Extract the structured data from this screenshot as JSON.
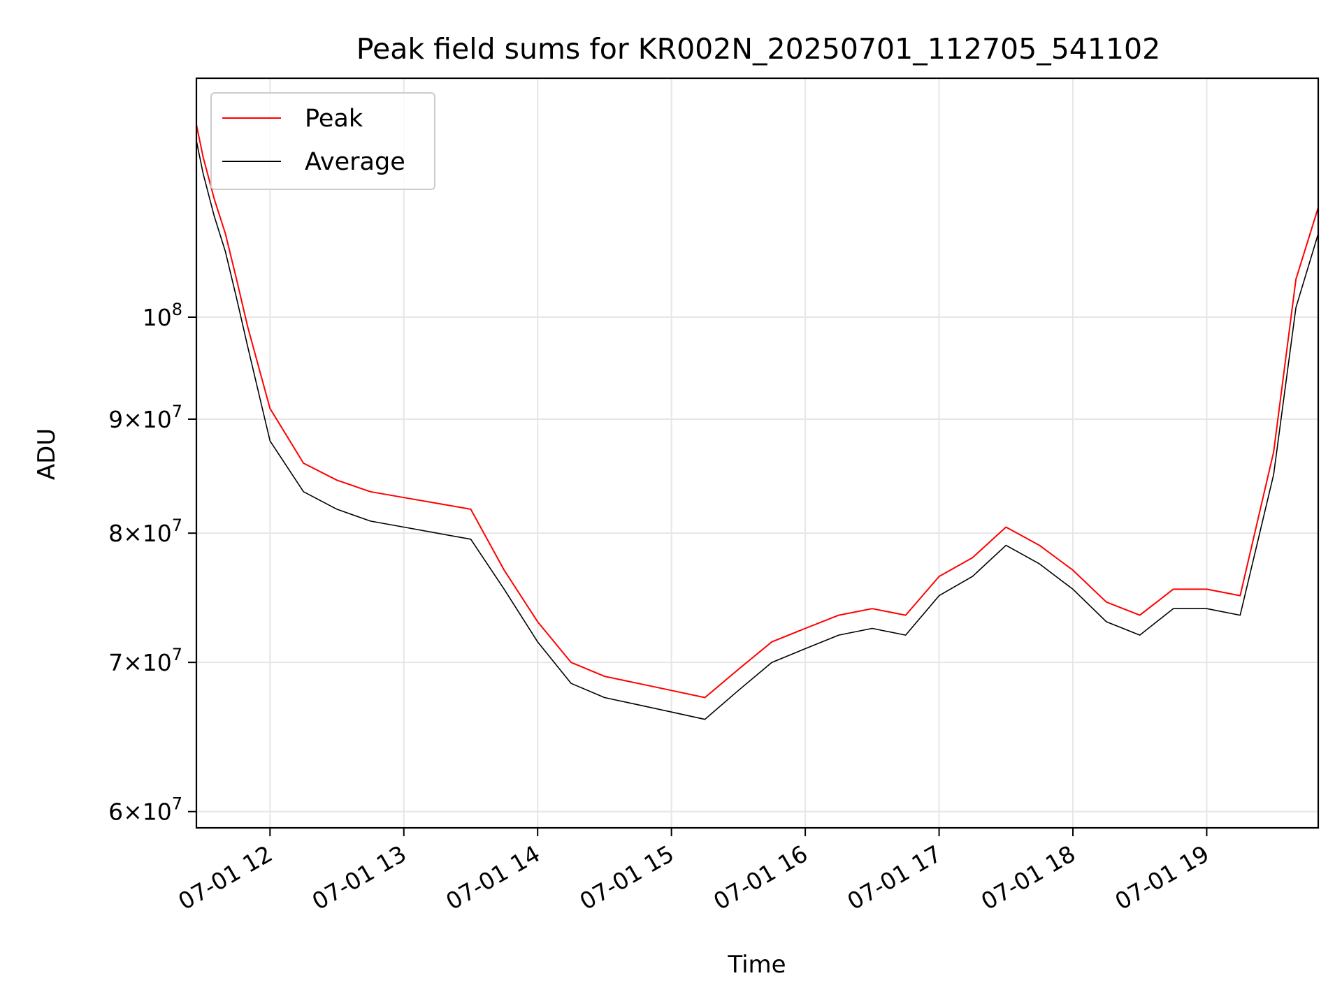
{
  "chart_data": {
    "type": "line",
    "title": "Peak field sums for KR002N_20250701_112705_541102",
    "xlabel": "Time",
    "ylabel": "ADU",
    "y_scale": "log",
    "grid": true,
    "legend": {
      "placement": "top-left"
    },
    "xlim": [
      "2025-07-01 11:27",
      "2025-07-01 19:50"
    ],
    "ylim": [
      59000000,
      128000000
    ],
    "x_ticks": [
      {
        "value": "2025-07-01 12:00",
        "label": "07-01 12"
      },
      {
        "value": "2025-07-01 13:00",
        "label": "07-01 13"
      },
      {
        "value": "2025-07-01 14:00",
        "label": "07-01 14"
      },
      {
        "value": "2025-07-01 15:00",
        "label": "07-01 15"
      },
      {
        "value": "2025-07-01 16:00",
        "label": "07-01 16"
      },
      {
        "value": "2025-07-01 17:00",
        "label": "07-01 17"
      },
      {
        "value": "2025-07-01 18:00",
        "label": "07-01 18"
      },
      {
        "value": "2025-07-01 19:00",
        "label": "07-01 19"
      }
    ],
    "y_ticks": [
      {
        "value": 60000000,
        "base": "6",
        "exp": "7"
      },
      {
        "value": 70000000,
        "base": "7",
        "exp": "7"
      },
      {
        "value": 80000000,
        "base": "8",
        "exp": "7"
      },
      {
        "value": 90000000,
        "base": "9",
        "exp": "7"
      },
      {
        "value": 100000000,
        "base": "",
        "exp": "8"
      }
    ],
    "x": [
      "2025-07-01 11:27",
      "2025-07-01 11:30",
      "2025-07-01 11:35",
      "2025-07-01 11:40",
      "2025-07-01 11:45",
      "2025-07-01 11:50",
      "2025-07-01 12:00",
      "2025-07-01 12:15",
      "2025-07-01 12:30",
      "2025-07-01 12:45",
      "2025-07-01 13:00",
      "2025-07-01 13:15",
      "2025-07-01 13:30",
      "2025-07-01 13:45",
      "2025-07-01 14:00",
      "2025-07-01 14:15",
      "2025-07-01 14:30",
      "2025-07-01 14:45",
      "2025-07-01 15:00",
      "2025-07-01 15:15",
      "2025-07-01 15:30",
      "2025-07-01 15:45",
      "2025-07-01 16:00",
      "2025-07-01 16:15",
      "2025-07-01 16:30",
      "2025-07-01 16:45",
      "2025-07-01 17:00",
      "2025-07-01 17:15",
      "2025-07-01 17:30",
      "2025-07-01 17:45",
      "2025-07-01 18:00",
      "2025-07-01 18:15",
      "2025-07-01 18:30",
      "2025-07-01 18:45",
      "2025-07-01 19:00",
      "2025-07-01 19:15",
      "2025-07-01 19:30",
      "2025-07-01 19:40",
      "2025-07-01 19:50"
    ],
    "series": [
      {
        "name": "Peak",
        "color": "#ff0000",
        "values": [
          122000000,
          118000000,
          113000000,
          109000000,
          104000000,
          99000000,
          91000000,
          86000000,
          84500000,
          83500000,
          83000000,
          82500000,
          82000000,
          77000000,
          73000000,
          70000000,
          69000000,
          68500000,
          68000000,
          67500000,
          69500000,
          71500000,
          72500000,
          73500000,
          74000000,
          73500000,
          76500000,
          78000000,
          80500000,
          79000000,
          77000000,
          74500000,
          73500000,
          75500000,
          75500000,
          75000000,
          87000000,
          104000000,
          112000000
        ]
      },
      {
        "name": "Average",
        "color": "#000000",
        "values": [
          120000000,
          116000000,
          111000000,
          107000000,
          102000000,
          97000000,
          88000000,
          83500000,
          82000000,
          81000000,
          80500000,
          80000000,
          79500000,
          75500000,
          71500000,
          68500000,
          67500000,
          67000000,
          66500000,
          66000000,
          68000000,
          70000000,
          71000000,
          72000000,
          72500000,
          72000000,
          75000000,
          76500000,
          79000000,
          77500000,
          75500000,
          73000000,
          72000000,
          74000000,
          74000000,
          73500000,
          85000000,
          101000000,
          109000000
        ]
      }
    ]
  }
}
